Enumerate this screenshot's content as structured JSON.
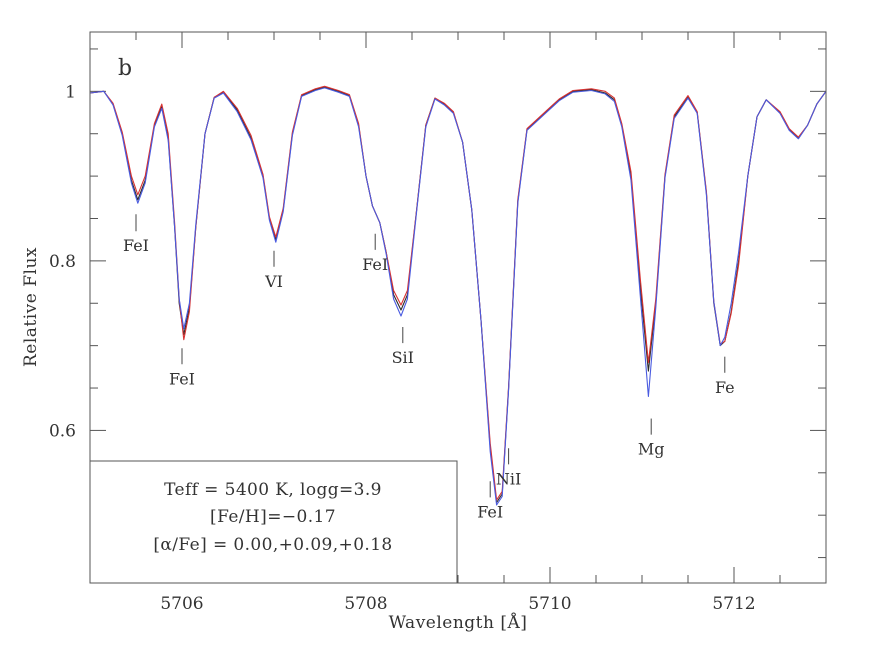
{
  "chart_data": {
    "type": "line",
    "panel_label": "b",
    "xlabel": "Wavelength [Å]",
    "ylabel": "Relative Flux",
    "xlim": [
      5705.0,
      5713.0
    ],
    "ylim": [
      0.42,
      1.07
    ],
    "x_ticks": [
      5706,
      5708,
      5710,
      5712
    ],
    "y_ticks": [
      0.6,
      0.8,
      1
    ],
    "y_tick_labels": [
      "0.6",
      "0.8",
      "1"
    ],
    "grid": false,
    "series": [
      {
        "color": "#2b2b2b",
        "points": [
          [
            5705.0,
            0.998
          ],
          [
            5705.15,
            1.0
          ],
          [
            5705.25,
            0.985
          ],
          [
            5705.35,
            0.95
          ],
          [
            5705.45,
            0.895
          ],
          [
            5705.52,
            0.872
          ],
          [
            5705.6,
            0.895
          ],
          [
            5705.7,
            0.96
          ],
          [
            5705.78,
            0.982
          ],
          [
            5705.85,
            0.945
          ],
          [
            5705.92,
            0.84
          ],
          [
            5705.97,
            0.75
          ],
          [
            5706.02,
            0.713
          ],
          [
            5706.08,
            0.745
          ],
          [
            5706.15,
            0.84
          ],
          [
            5706.25,
            0.95
          ],
          [
            5706.35,
            0.993
          ],
          [
            5706.45,
            0.999
          ],
          [
            5706.6,
            0.978
          ],
          [
            5706.75,
            0.945
          ],
          [
            5706.88,
            0.9
          ],
          [
            5706.95,
            0.85
          ],
          [
            5707.02,
            0.825
          ],
          [
            5707.1,
            0.86
          ],
          [
            5707.2,
            0.95
          ],
          [
            5707.3,
            0.995
          ],
          [
            5707.45,
            1.002
          ],
          [
            5707.55,
            1.005
          ],
          [
            5707.7,
            1.0
          ],
          [
            5707.82,
            0.995
          ],
          [
            5707.92,
            0.96
          ],
          [
            5708.0,
            0.9
          ],
          [
            5708.07,
            0.865
          ],
          [
            5708.15,
            0.845
          ],
          [
            5708.22,
            0.81
          ],
          [
            5708.3,
            0.76
          ],
          [
            5708.38,
            0.742
          ],
          [
            5708.45,
            0.76
          ],
          [
            5708.55,
            0.86
          ],
          [
            5708.65,
            0.96
          ],
          [
            5708.75,
            0.992
          ],
          [
            5708.85,
            0.985
          ],
          [
            5708.95,
            0.975
          ],
          [
            5709.05,
            0.94
          ],
          [
            5709.15,
            0.86
          ],
          [
            5709.25,
            0.73
          ],
          [
            5709.35,
            0.58
          ],
          [
            5709.42,
            0.515
          ],
          [
            5709.48,
            0.525
          ],
          [
            5709.55,
            0.65
          ],
          [
            5709.65,
            0.87
          ],
          [
            5709.75,
            0.955
          ],
          [
            5709.85,
            0.965
          ],
          [
            5709.95,
            0.975
          ],
          [
            5710.1,
            0.99
          ],
          [
            5710.25,
            1.0
          ],
          [
            5710.45,
            1.002
          ],
          [
            5710.6,
            0.998
          ],
          [
            5710.7,
            0.99
          ],
          [
            5710.78,
            0.96
          ],
          [
            5710.88,
            0.9
          ],
          [
            5710.98,
            0.77
          ],
          [
            5711.07,
            0.67
          ],
          [
            5711.15,
            0.75
          ],
          [
            5711.25,
            0.9
          ],
          [
            5711.35,
            0.97
          ],
          [
            5711.5,
            0.993
          ],
          [
            5711.6,
            0.975
          ],
          [
            5711.7,
            0.88
          ],
          [
            5711.78,
            0.75
          ],
          [
            5711.85,
            0.7
          ],
          [
            5711.9,
            0.705
          ],
          [
            5711.97,
            0.74
          ],
          [
            5712.05,
            0.8
          ],
          [
            5712.15,
            0.9
          ],
          [
            5712.25,
            0.97
          ],
          [
            5712.35,
            0.99
          ],
          [
            5712.5,
            0.975
          ],
          [
            5712.6,
            0.955
          ],
          [
            5712.7,
            0.945
          ],
          [
            5712.8,
            0.96
          ],
          [
            5712.9,
            0.985
          ],
          [
            5713.0,
            1.0
          ]
        ]
      },
      {
        "color": "#d83232",
        "points": [
          [
            5705.0,
            0.998
          ],
          [
            5705.15,
            1.0
          ],
          [
            5705.25,
            0.986
          ],
          [
            5705.35,
            0.952
          ],
          [
            5705.45,
            0.9
          ],
          [
            5705.52,
            0.878
          ],
          [
            5705.6,
            0.9
          ],
          [
            5705.7,
            0.962
          ],
          [
            5705.78,
            0.985
          ],
          [
            5705.85,
            0.95
          ],
          [
            5705.92,
            0.845
          ],
          [
            5705.97,
            0.755
          ],
          [
            5706.02,
            0.707
          ],
          [
            5706.08,
            0.74
          ],
          [
            5706.15,
            0.84
          ],
          [
            5706.25,
            0.95
          ],
          [
            5706.35,
            0.993
          ],
          [
            5706.45,
            1.0
          ],
          [
            5706.6,
            0.98
          ],
          [
            5706.75,
            0.948
          ],
          [
            5706.88,
            0.902
          ],
          [
            5706.95,
            0.852
          ],
          [
            5707.02,
            0.828
          ],
          [
            5707.1,
            0.862
          ],
          [
            5707.2,
            0.952
          ],
          [
            5707.3,
            0.996
          ],
          [
            5707.45,
            1.003
          ],
          [
            5707.55,
            1.006
          ],
          [
            5707.7,
            1.001
          ],
          [
            5707.82,
            0.996
          ],
          [
            5707.92,
            0.962
          ],
          [
            5708.0,
            0.9
          ],
          [
            5708.07,
            0.865
          ],
          [
            5708.15,
            0.845
          ],
          [
            5708.22,
            0.81
          ],
          [
            5708.3,
            0.765
          ],
          [
            5708.38,
            0.748
          ],
          [
            5708.45,
            0.765
          ],
          [
            5708.55,
            0.86
          ],
          [
            5708.65,
            0.96
          ],
          [
            5708.75,
            0.992
          ],
          [
            5708.85,
            0.986
          ],
          [
            5708.95,
            0.976
          ],
          [
            5709.05,
            0.94
          ],
          [
            5709.15,
            0.86
          ],
          [
            5709.25,
            0.73
          ],
          [
            5709.35,
            0.585
          ],
          [
            5709.42,
            0.518
          ],
          [
            5709.48,
            0.528
          ],
          [
            5709.55,
            0.652
          ],
          [
            5709.65,
            0.872
          ],
          [
            5709.75,
            0.956
          ],
          [
            5709.85,
            0.966
          ],
          [
            5709.95,
            0.976
          ],
          [
            5710.1,
            0.991
          ],
          [
            5710.25,
            1.001
          ],
          [
            5710.45,
            1.003
          ],
          [
            5710.6,
            1.0
          ],
          [
            5710.7,
            0.992
          ],
          [
            5710.78,
            0.962
          ],
          [
            5710.88,
            0.905
          ],
          [
            5710.98,
            0.78
          ],
          [
            5711.07,
            0.68
          ],
          [
            5711.15,
            0.755
          ],
          [
            5711.25,
            0.902
          ],
          [
            5711.35,
            0.972
          ],
          [
            5711.5,
            0.995
          ],
          [
            5711.6,
            0.976
          ],
          [
            5711.7,
            0.882
          ],
          [
            5711.78,
            0.752
          ],
          [
            5711.85,
            0.702
          ],
          [
            5711.9,
            0.705
          ],
          [
            5711.97,
            0.738
          ],
          [
            5712.05,
            0.795
          ],
          [
            5712.15,
            0.9
          ],
          [
            5712.25,
            0.97
          ],
          [
            5712.35,
            0.99
          ],
          [
            5712.5,
            0.976
          ],
          [
            5712.6,
            0.956
          ],
          [
            5712.7,
            0.946
          ],
          [
            5712.8,
            0.96
          ],
          [
            5712.9,
            0.985
          ],
          [
            5713.0,
            1.0
          ]
        ]
      },
      {
        "color": "#4a5be0",
        "points": [
          [
            5705.0,
            0.998
          ],
          [
            5705.15,
            1.0
          ],
          [
            5705.25,
            0.984
          ],
          [
            5705.35,
            0.948
          ],
          [
            5705.45,
            0.892
          ],
          [
            5705.52,
            0.868
          ],
          [
            5705.6,
            0.892
          ],
          [
            5705.7,
            0.958
          ],
          [
            5705.78,
            0.98
          ],
          [
            5705.85,
            0.942
          ],
          [
            5705.92,
            0.84
          ],
          [
            5705.97,
            0.755
          ],
          [
            5706.02,
            0.72
          ],
          [
            5706.08,
            0.75
          ],
          [
            5706.15,
            0.843
          ],
          [
            5706.25,
            0.95
          ],
          [
            5706.35,
            0.992
          ],
          [
            5706.45,
            0.998
          ],
          [
            5706.6,
            0.976
          ],
          [
            5706.75,
            0.943
          ],
          [
            5706.88,
            0.898
          ],
          [
            5706.95,
            0.848
          ],
          [
            5707.02,
            0.822
          ],
          [
            5707.1,
            0.858
          ],
          [
            5707.2,
            0.948
          ],
          [
            5707.3,
            0.994
          ],
          [
            5707.45,
            1.001
          ],
          [
            5707.55,
            1.004
          ],
          [
            5707.7,
            0.999
          ],
          [
            5707.82,
            0.994
          ],
          [
            5707.92,
            0.958
          ],
          [
            5708.0,
            0.9
          ],
          [
            5708.07,
            0.865
          ],
          [
            5708.15,
            0.845
          ],
          [
            5708.22,
            0.808
          ],
          [
            5708.3,
            0.755
          ],
          [
            5708.38,
            0.735
          ],
          [
            5708.45,
            0.755
          ],
          [
            5708.55,
            0.858
          ],
          [
            5708.65,
            0.958
          ],
          [
            5708.75,
            0.991
          ],
          [
            5708.85,
            0.984
          ],
          [
            5708.95,
            0.974
          ],
          [
            5709.05,
            0.94
          ],
          [
            5709.15,
            0.86
          ],
          [
            5709.25,
            0.73
          ],
          [
            5709.35,
            0.575
          ],
          [
            5709.42,
            0.512
          ],
          [
            5709.48,
            0.522
          ],
          [
            5709.55,
            0.648
          ],
          [
            5709.65,
            0.868
          ],
          [
            5709.75,
            0.954
          ],
          [
            5709.85,
            0.964
          ],
          [
            5709.95,
            0.974
          ],
          [
            5710.1,
            0.989
          ],
          [
            5710.25,
            0.999
          ],
          [
            5710.45,
            1.001
          ],
          [
            5710.6,
            0.997
          ],
          [
            5710.7,
            0.988
          ],
          [
            5710.78,
            0.958
          ],
          [
            5710.88,
            0.895
          ],
          [
            5710.98,
            0.76
          ],
          [
            5711.07,
            0.64
          ],
          [
            5711.15,
            0.745
          ],
          [
            5711.25,
            0.898
          ],
          [
            5711.35,
            0.968
          ],
          [
            5711.5,
            0.992
          ],
          [
            5711.6,
            0.974
          ],
          [
            5711.7,
            0.878
          ],
          [
            5711.78,
            0.752
          ],
          [
            5711.85,
            0.7
          ],
          [
            5711.9,
            0.71
          ],
          [
            5711.97,
            0.75
          ],
          [
            5712.05,
            0.81
          ],
          [
            5712.15,
            0.9
          ],
          [
            5712.25,
            0.97
          ],
          [
            5712.35,
            0.99
          ],
          [
            5712.5,
            0.974
          ],
          [
            5712.6,
            0.954
          ],
          [
            5712.7,
            0.944
          ],
          [
            5712.8,
            0.96
          ],
          [
            5712.9,
            0.985
          ],
          [
            5713.0,
            1.0
          ]
        ]
      }
    ],
    "line_labels": [
      {
        "text": "FeI",
        "x": 5705.5,
        "y_top": 0.855,
        "y_bottom": 0.835,
        "text_below": true
      },
      {
        "text": "FeI",
        "x": 5706.0,
        "y_top": 0.697,
        "y_bottom": 0.678,
        "text_below": true
      },
      {
        "text": "VI",
        "x": 5707.0,
        "y_top": 0.812,
        "y_bottom": 0.793,
        "text_below": true
      },
      {
        "text": "FeI",
        "x": 5708.1,
        "y_top": 0.832,
        "y_bottom": 0.813,
        "text_below": true
      },
      {
        "text": "SiI",
        "x": 5708.4,
        "y_top": 0.722,
        "y_bottom": 0.703,
        "text_below": true
      },
      {
        "text": "FeI",
        "x": 5709.35,
        "y_top": 0.54,
        "y_bottom": 0.521,
        "text_below": true
      },
      {
        "text": "NiI",
        "x": 5709.55,
        "y_top": 0.579,
        "y_bottom": 0.56,
        "text_below": true
      },
      {
        "text": "Mg",
        "x": 5711.1,
        "y_top": 0.614,
        "y_bottom": 0.595,
        "text_below": true
      },
      {
        "text": "Fe",
        "x": 5711.9,
        "y_top": 0.687,
        "y_bottom": 0.668,
        "text_below": true
      }
    ],
    "info_box": {
      "line1": "Teff = 5400 K, logg=3.9",
      "line2": "[Fe/H]=−0.17",
      "line3": "[α/Fe] = 0.00,+0.09,+0.18"
    }
  }
}
